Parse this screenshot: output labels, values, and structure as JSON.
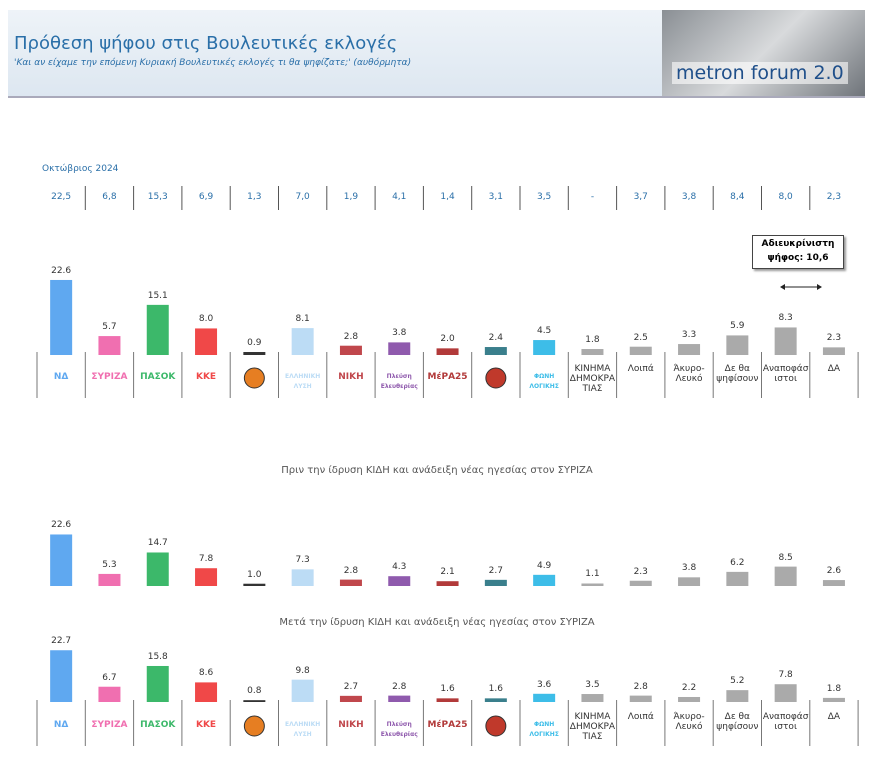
{
  "header": {
    "title": "Πρόθεση ψήφου στις Βουλευτικές εκλογές",
    "subtitle": "'Και αν είχαμε την επόμενη Κυριακή Βουλευτικές εκλογές τι θα ψηφίζατε;' (αυθόρμητα)",
    "brand": "metron forum 2.0"
  },
  "october": {
    "label": "Οκτώβριος 2024",
    "values": [
      "22,5",
      "6,8",
      "15,3",
      "6,9",
      "1,3",
      "7,0",
      "1,9",
      "4,1",
      "1,4",
      "3,1",
      "3,5",
      "-",
      "3,7",
      "3,8",
      "8,4",
      "8,0",
      "2,3"
    ]
  },
  "annotation": {
    "text": "Αδιευκρίνιστη ψήφος: 10,6"
  },
  "chart_data": [
    {
      "type": "bar",
      "categories": [
        "ΝΔ",
        "ΣΥΡΙΖΑ",
        "ΠΑΣΟΚ",
        "ΚΚΕ",
        null,
        "ΕΛΛΗΝΙΚΗ ΛΥΣΗ",
        "ΝΙΚΗ",
        "Πλεύση Ελευθερίας",
        "ΜέΡΑ25",
        null,
        "ΦΩΝΗ ΛΟΓΙΚΗΣ",
        "ΚΙΝΗΜΑ ΔΗΜΟΚΡΑΤΙΑΣ",
        "Λοιπά",
        "Άκυρο-Λευκό",
        "Δε θα ψηφίσουν",
        "Αναποφάσιστοι",
        "ΔΑ"
      ],
      "values": [
        22.6,
        5.7,
        15.1,
        8.0,
        0.9,
        8.1,
        2.8,
        3.8,
        2.0,
        2.4,
        4.5,
        1.8,
        2.5,
        3.3,
        5.9,
        8.3,
        2.3
      ],
      "value_labels": [
        "22.6",
        "5.7",
        "15.1",
        "8.0",
        "0.9",
        "8.1",
        "2.8",
        "3.8",
        "2.0",
        "2.4",
        "4.5",
        "1.8",
        "2.5",
        "3.3",
        "5.9",
        "8.3",
        "2.3"
      ],
      "colors": [
        "#5fa8f0",
        "#f06fb0",
        "#3cb86a",
        "#f04848",
        "#333333",
        "#bcdcf5",
        "#c0474c",
        "#8f5aad",
        "#b23a3a",
        "#3a7f8c",
        "#3dbde8",
        "#aaaaaa",
        "#aaaaaa",
        "#aaaaaa",
        "#aaaaaa",
        "#aaaaaa",
        "#aaaaaa"
      ],
      "ylim": [
        0,
        25
      ]
    },
    {
      "type": "bar",
      "title": "Πριν την ίδρυση ΚΙΔΗ και ανάδειξη νέας ηγεσίας στον ΣΥΡΙΖΑ",
      "values": [
        22.6,
        5.3,
        14.7,
        7.8,
        1.0,
        7.3,
        2.8,
        4.3,
        2.1,
        2.7,
        4.9,
        1.1,
        2.3,
        3.8,
        6.2,
        8.5,
        2.6
      ],
      "value_labels": [
        "22.6",
        "5.3",
        "14.7",
        "7.8",
        "1.0",
        "7.3",
        "2.8",
        "4.3",
        "2.1",
        "2.7",
        "4.9",
        "1.1",
        "2.3",
        "3.8",
        "6.2",
        "8.5",
        "2.6"
      ],
      "colors": [
        "#5fa8f0",
        "#f06fb0",
        "#3cb86a",
        "#f04848",
        "#333333",
        "#bcdcf5",
        "#c0474c",
        "#8f5aad",
        "#b23a3a",
        "#3a7f8c",
        "#3dbde8",
        "#aaaaaa",
        "#aaaaaa",
        "#aaaaaa",
        "#aaaaaa",
        "#aaaaaa",
        "#aaaaaa"
      ],
      "ylim": [
        0,
        25
      ]
    },
    {
      "type": "bar",
      "title": "Μετά την ίδρυση ΚΙΔΗ και ανάδειξη νέας ηγεσίας στον ΣΥΡΙΖΑ",
      "categories": [
        "ΝΔ",
        "ΣΥΡΙΖΑ",
        "ΠΑΣΟΚ",
        "ΚΚΕ",
        null,
        "ΕΛΛΗΝΙΚΗ ΛΥΣΗ",
        "ΝΙΚΗ",
        "Πλεύση Ελευθερίας",
        "ΜέΡΑ25",
        null,
        "ΦΩΝΗ ΛΟΓΙΚΗΣ",
        "ΚΙΝΗΜΑ ΔΗΜΟΚΡΑΤΙΑΣ",
        "Λοιπά",
        "Άκυρο-Λευκό",
        "Δε θα ψηφίσουν",
        "Αναποφάσιστοι",
        "ΔΑ"
      ],
      "values": [
        22.7,
        6.7,
        15.8,
        8.6,
        0.8,
        9.8,
        2.7,
        2.8,
        1.6,
        1.6,
        3.6,
        3.5,
        2.8,
        2.2,
        5.2,
        7.8,
        1.8
      ],
      "value_labels": [
        "22.7",
        "6.7",
        "15.8",
        "8.6",
        "0.8",
        "9.8",
        "2.7",
        "2.8",
        "1.6",
        "1.6",
        "3.6",
        "3.5",
        "2.8",
        "2.2",
        "5.2",
        "7.8",
        "1.8"
      ],
      "colors": [
        "#5fa8f0",
        "#f06fb0",
        "#3cb86a",
        "#f04848",
        "#333333",
        "#bcdcf5",
        "#c0474c",
        "#8f5aad",
        "#b23a3a",
        "#3a7f8c",
        "#3dbde8",
        "#aaaaaa",
        "#aaaaaa",
        "#aaaaaa",
        "#aaaaaa",
        "#aaaaaa",
        "#aaaaaa"
      ],
      "ylim": [
        0,
        25
      ]
    }
  ]
}
